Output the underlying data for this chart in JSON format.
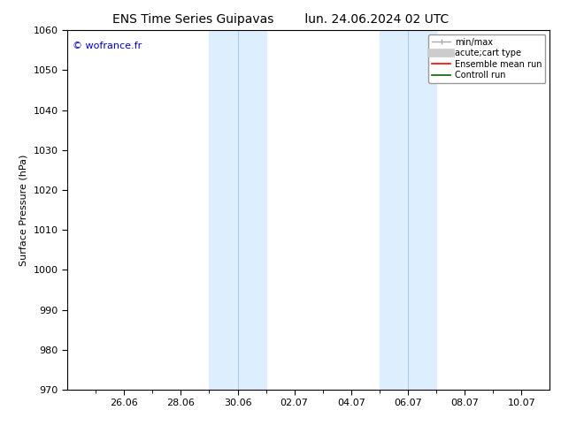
{
  "title_left": "ENS Time Series Guipavas",
  "title_right": "lun. 24.06.2024 02 UTC",
  "ylabel": "Surface Pressure (hPa)",
  "ylim": [
    970,
    1060
  ],
  "yticks": [
    970,
    980,
    990,
    1000,
    1010,
    1020,
    1030,
    1040,
    1050,
    1060
  ],
  "xtick_labels": [
    "26.06",
    "28.06",
    "30.06",
    "02.07",
    "04.07",
    "06.07",
    "08.07",
    "10.07"
  ],
  "xtick_positions": [
    2,
    4,
    6,
    8,
    10,
    12,
    14,
    16
  ],
  "xlim": [
    0,
    17
  ],
  "shaded_regions": [
    {
      "x_start": 5.0,
      "x_end": 6.0,
      "color": "#ddeeff"
    },
    {
      "x_start": 6.0,
      "x_end": 7.0,
      "color": "#ddeeff"
    },
    {
      "x_start": 11.0,
      "x_end": 12.0,
      "color": "#ddeeff"
    },
    {
      "x_start": 12.0,
      "x_end": 13.0,
      "color": "#ddeeff"
    }
  ],
  "watermark": "© wofrance.fr",
  "watermark_color": "#0000cc",
  "legend_entries": [
    {
      "label": "min/max",
      "color": "#aaaaaa"
    },
    {
      "label": "acute;cart type",
      "color": "#cccccc"
    },
    {
      "label": "Ensemble mean run",
      "color": "red"
    },
    {
      "label": "Controll run",
      "color": "darkgreen"
    }
  ],
  "background_color": "#ffffff",
  "plot_bg_color": "#ffffff",
  "title_fontsize": 10,
  "axis_fontsize": 8,
  "tick_fontsize": 8
}
